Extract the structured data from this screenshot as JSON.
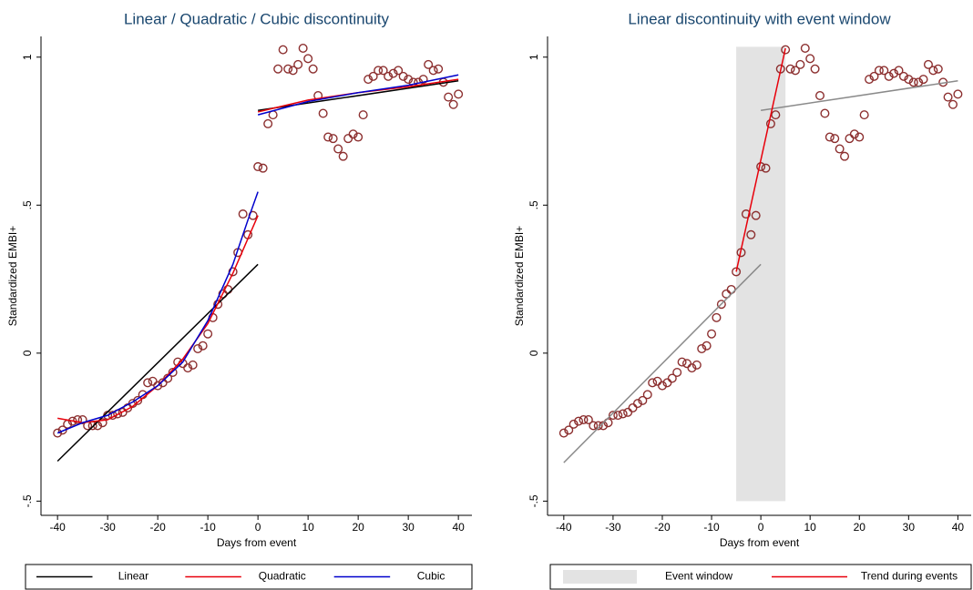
{
  "chart_data": [
    {
      "type": "scatter",
      "title": "Linear / Quadratic / Cubic discontinuity",
      "xlabel": "Days from event",
      "ylabel": "Standardized EMBI+",
      "xlim": [
        -43.3,
        42.7
      ],
      "xticks": [
        -40,
        -30,
        -20,
        -10,
        0,
        10,
        20,
        30,
        40
      ],
      "ylim": [
        -0.548,
        1.07
      ],
      "yticks": [
        {
          "value": -0.5,
          "label": "-.5"
        },
        0,
        {
          "value": 0.5,
          "label": ".5"
        },
        1
      ],
      "grid": false,
      "legend": "bottom",
      "spans": [],
      "series": [
        {
          "style": "markers",
          "color": "#8c2f2f",
          "x": [
            -40,
            -39,
            -38,
            -37,
            -36,
            -35,
            -34,
            -33,
            -32,
            -31,
            -30,
            -29,
            -28,
            -27,
            -26,
            -25,
            -24,
            -23,
            -22,
            -21,
            -20,
            -19,
            -18,
            -17,
            -16,
            -15,
            -14,
            -13,
            -12,
            -11,
            -10,
            -9,
            -8,
            -7,
            -6,
            -5,
            -4,
            -3,
            -2,
            -1,
            0,
            1,
            2,
            3,
            4,
            5,
            6,
            7,
            8,
            9,
            10,
            11,
            12,
            13,
            14,
            15,
            16,
            17,
            18,
            19,
            20,
            21,
            22,
            23,
            24,
            25,
            26,
            27,
            28,
            29,
            30,
            31,
            32,
            33,
            34,
            35,
            36,
            37,
            38,
            39,
            40
          ],
          "values": [
            -0.27,
            -0.26,
            -0.24,
            -0.23,
            -0.225,
            -0.225,
            -0.245,
            -0.245,
            -0.245,
            -0.235,
            -0.21,
            -0.21,
            -0.205,
            -0.2,
            -0.185,
            -0.17,
            -0.16,
            -0.14,
            -0.1,
            -0.095,
            -0.11,
            -0.1,
            -0.085,
            -0.065,
            -0.03,
            -0.035,
            -0.05,
            -0.04,
            0.015,
            0.025,
            0.065,
            0.12,
            0.165,
            0.2,
            0.215,
            0.275,
            0.34,
            0.47,
            0.4,
            0.465,
            0.63,
            0.625,
            0.775,
            0.805,
            0.96,
            1.025,
            0.96,
            0.955,
            0.975,
            1.03,
            0.995,
            0.96,
            0.87,
            0.81,
            0.73,
            0.725,
            0.69,
            0.665,
            0.725,
            0.74,
            0.73,
            0.805,
            0.925,
            0.935,
            0.955,
            0.955,
            0.935,
            0.945,
            0.955,
            0.935,
            0.925,
            0.915,
            0.915,
            0.925,
            0.975,
            0.955,
            0.96,
            0.915,
            0.865,
            0.84,
            0.875
          ]
        },
        {
          "style": "line",
          "name": "Linear",
          "color": "#000000",
          "x": [
            -40,
            0,
            null,
            0,
            40
          ],
          "values": [
            -0.365,
            0.3,
            null,
            0.82,
            0.92
          ]
        },
        {
          "style": "line",
          "name": "Quadratic",
          "color": "#e8000b",
          "x": [
            -40,
            -35,
            -30,
            -25,
            -20,
            -15,
            -10,
            -5,
            0,
            null,
            0,
            10,
            20,
            30,
            40
          ],
          "values": [
            -0.22,
            -0.235,
            -0.225,
            -0.18,
            -0.11,
            -0.02,
            0.1,
            0.27,
            0.465,
            null,
            0.815,
            0.855,
            0.88,
            0.9,
            0.925
          ]
        },
        {
          "style": "line",
          "name": "Cubic",
          "color": "#0000cc",
          "x": [
            -40,
            -35,
            -30,
            -25,
            -20,
            -15,
            -10,
            -5,
            -2,
            0,
            null,
            0,
            10,
            20,
            30,
            40
          ],
          "values": [
            -0.27,
            -0.235,
            -0.21,
            -0.165,
            -0.11,
            -0.03,
            0.11,
            0.3,
            0.45,
            0.545,
            null,
            0.805,
            0.85,
            0.88,
            0.905,
            0.94
          ]
        }
      ]
    },
    {
      "type": "scatter",
      "title": "Linear discontinuity with event window",
      "xlabel": "Days from event",
      "ylabel": "Standardized EMBI+",
      "xlim": [
        -43.3,
        42.7
      ],
      "xticks": [
        -40,
        -30,
        -20,
        -10,
        0,
        10,
        20,
        30,
        40
      ],
      "ylim": [
        -0.548,
        1.07
      ],
      "yticks": [
        {
          "value": -0.5,
          "label": "-.5"
        },
        0,
        {
          "value": 0.5,
          "label": ".5"
        },
        1
      ],
      "grid": false,
      "legend": "bottom",
      "spans": [
        {
          "name": "Event window",
          "color": "#e3e3e3",
          "x": [
            -5,
            5
          ],
          "y": [
            -0.5,
            1.035
          ]
        }
      ],
      "series": [
        {
          "style": "markers",
          "color": "#8c2f2f",
          "x": [
            -40,
            -39,
            -38,
            -37,
            -36,
            -35,
            -34,
            -33,
            -32,
            -31,
            -30,
            -29,
            -28,
            -27,
            -26,
            -25,
            -24,
            -23,
            -22,
            -21,
            -20,
            -19,
            -18,
            -17,
            -16,
            -15,
            -14,
            -13,
            -12,
            -11,
            -10,
            -9,
            -8,
            -7,
            -6,
            -5,
            -4,
            -3,
            -2,
            -1,
            0,
            1,
            2,
            3,
            4,
            5,
            6,
            7,
            8,
            9,
            10,
            11,
            12,
            13,
            14,
            15,
            16,
            17,
            18,
            19,
            20,
            21,
            22,
            23,
            24,
            25,
            26,
            27,
            28,
            29,
            30,
            31,
            32,
            33,
            34,
            35,
            36,
            37,
            38,
            39,
            40
          ],
          "values": [
            -0.27,
            -0.26,
            -0.24,
            -0.23,
            -0.225,
            -0.225,
            -0.245,
            -0.245,
            -0.245,
            -0.235,
            -0.21,
            -0.21,
            -0.205,
            -0.2,
            -0.185,
            -0.17,
            -0.16,
            -0.14,
            -0.1,
            -0.095,
            -0.11,
            -0.1,
            -0.085,
            -0.065,
            -0.03,
            -0.035,
            -0.05,
            -0.04,
            0.015,
            0.025,
            0.065,
            0.12,
            0.165,
            0.2,
            0.215,
            0.275,
            0.34,
            0.47,
            0.4,
            0.465,
            0.63,
            0.625,
            0.775,
            0.805,
            0.96,
            1.025,
            0.96,
            0.955,
            0.975,
            1.03,
            0.995,
            0.96,
            0.87,
            0.81,
            0.73,
            0.725,
            0.69,
            0.665,
            0.725,
            0.74,
            0.73,
            0.805,
            0.925,
            0.935,
            0.955,
            0.955,
            0.935,
            0.945,
            0.955,
            0.935,
            0.925,
            0.915,
            0.915,
            0.925,
            0.975,
            0.955,
            0.96,
            0.915,
            0.865,
            0.84,
            0.875
          ]
        },
        {
          "style": "line",
          "color": "#8a8a8a",
          "x": [
            -40,
            0,
            null,
            0,
            40
          ],
          "values": [
            -0.37,
            0.3,
            null,
            0.82,
            0.92
          ]
        },
        {
          "style": "line",
          "name": "Trend during events",
          "color": "#e8000b",
          "x": [
            -5,
            5
          ],
          "values": [
            0.275,
            1.03
          ]
        }
      ]
    }
  ]
}
